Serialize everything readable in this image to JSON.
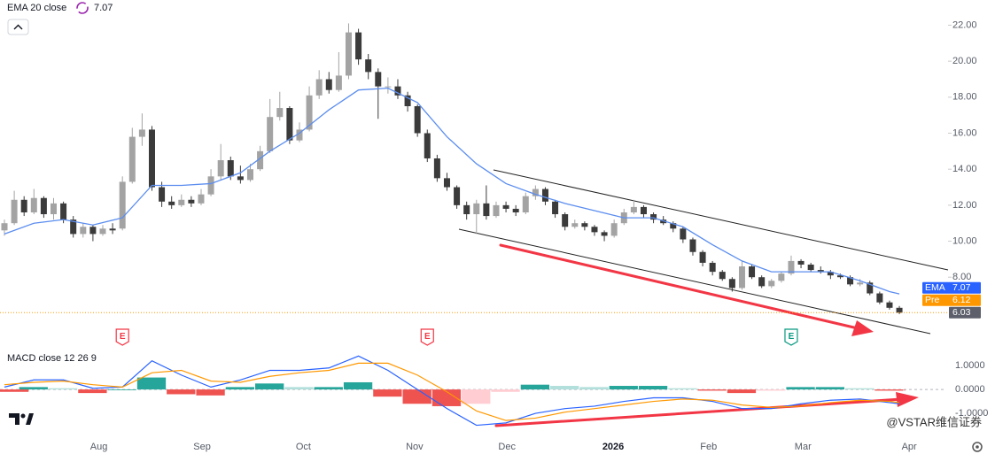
{
  "chart_data": [
    {
      "type": "candlestick",
      "indicator_label": "EMA 20 close",
      "up_color": "#a3a3a3",
      "down_color": "#3b3b3b",
      "xlim": [
        -0.45,
        95.95
      ],
      "xticks": [
        {
          "value": 9.6,
          "label": "Aug"
        },
        {
          "value": 20.1,
          "label": "Sep"
        },
        {
          "value": 30.4,
          "label": "Oct"
        },
        {
          "value": 41.7,
          "label": "Nov"
        },
        {
          "value": 51.1,
          "label": "Dec"
        },
        {
          "value": 61.9,
          "label": "2026"
        },
        {
          "value": 71.6,
          "label": "Feb"
        },
        {
          "value": 81.2,
          "label": "Mar"
        },
        {
          "value": 92,
          "label": "Apr"
        }
      ],
      "ylim": [
        5.7,
        23.4
      ],
      "yticks": [
        {
          "value": 8,
          "label": "8.00"
        },
        {
          "value": 10,
          "label": "10.00"
        },
        {
          "value": 12,
          "label": "12.00"
        },
        {
          "value": 14,
          "label": "14.00"
        },
        {
          "value": 16,
          "label": "16.00"
        },
        {
          "value": 18,
          "label": "18.00"
        },
        {
          "value": 20,
          "label": "20.00"
        },
        {
          "value": 22,
          "label": "22.00"
        }
      ],
      "candles": [
        [
          10.6,
          11.2,
          10.3,
          11.0
        ],
        [
          11.0,
          12.8,
          10.9,
          12.3
        ],
        [
          12.3,
          12.5,
          11.4,
          11.6
        ],
        [
          11.6,
          12.9,
          11.5,
          12.4
        ],
        [
          12.4,
          12.5,
          11.3,
          11.5
        ],
        [
          11.5,
          12.4,
          11.2,
          12.1
        ],
        [
          12.1,
          12.2,
          11.0,
          11.2
        ],
        [
          11.2,
          11.4,
          10.2,
          10.4
        ],
        [
          10.4,
          11.0,
          10.2,
          10.8
        ],
        [
          10.8,
          10.9,
          10.0,
          10.4
        ],
        [
          10.4,
          10.9,
          10.3,
          10.7
        ],
        [
          10.7,
          11.0,
          10.4,
          10.6
        ],
        [
          10.7,
          13.6,
          10.6,
          13.3
        ],
        [
          13.3,
          16.3,
          13.2,
          15.8
        ],
        [
          15.8,
          17.1,
          15.3,
          16.2
        ],
        [
          16.2,
          16.4,
          12.8,
          13.0
        ],
        [
          13.0,
          13.3,
          11.9,
          12.2
        ],
        [
          12.2,
          12.5,
          11.8,
          12.0
        ],
        [
          12.0,
          12.6,
          11.9,
          12.3
        ],
        [
          12.3,
          12.5,
          11.9,
          12.1
        ],
        [
          12.1,
          12.9,
          12.0,
          12.6
        ],
        [
          12.6,
          14.0,
          12.5,
          13.6
        ],
        [
          13.6,
          15.4,
          13.4,
          14.5
        ],
        [
          14.5,
          14.7,
          13.4,
          13.6
        ],
        [
          13.6,
          14.2,
          13.2,
          13.4
        ],
        [
          13.4,
          14.3,
          13.3,
          14.0
        ],
        [
          14.0,
          15.3,
          13.9,
          15.0
        ],
        [
          15.0,
          17.9,
          14.9,
          16.9
        ],
        [
          16.9,
          18.3,
          16.7,
          17.4
        ],
        [
          17.4,
          17.5,
          15.4,
          15.6
        ],
        [
          15.6,
          16.6,
          15.5,
          16.2
        ],
        [
          16.2,
          18.6,
          16.1,
          18.1
        ],
        [
          18.1,
          19.5,
          17.9,
          19.0
        ],
        [
          19.0,
          19.4,
          18.2,
          18.4
        ],
        [
          18.4,
          20.5,
          18.3,
          19.2
        ],
        [
          19.2,
          22.1,
          19.0,
          21.6
        ],
        [
          21.6,
          21.8,
          19.8,
          20.1
        ],
        [
          20.1,
          20.4,
          19.0,
          19.4
        ],
        [
          19.4,
          19.6,
          16.8,
          18.6
        ],
        [
          18.6,
          19.1,
          18.2,
          18.6
        ],
        [
          18.6,
          19.0,
          17.9,
          18.1
        ],
        [
          18.1,
          18.3,
          17.2,
          17.5
        ],
        [
          17.5,
          17.6,
          15.8,
          16.0
        ],
        [
          16.0,
          16.2,
          14.4,
          14.6
        ],
        [
          14.6,
          14.8,
          13.3,
          13.5
        ],
        [
          13.5,
          13.8,
          12.8,
          13.0
        ],
        [
          13.0,
          13.1,
          11.8,
          12.0
        ],
        [
          12.0,
          12.2,
          11.2,
          11.5
        ],
        [
          11.5,
          12.3,
          10.4,
          12.1
        ],
        [
          12.1,
          13.1,
          11.2,
          11.4
        ],
        [
          11.4,
          12.2,
          11.3,
          12.0
        ],
        [
          12.0,
          12.2,
          11.6,
          11.8
        ],
        [
          11.8,
          12.0,
          11.4,
          11.6
        ],
        [
          11.6,
          12.7,
          11.5,
          12.5
        ],
        [
          12.5,
          13.1,
          12.3,
          12.9
        ],
        [
          12.9,
          13.0,
          12.0,
          12.2
        ],
        [
          12.2,
          12.3,
          11.3,
          11.5
        ],
        [
          11.5,
          11.6,
          10.6,
          10.8
        ],
        [
          10.8,
          11.2,
          10.7,
          11.0
        ],
        [
          11.0,
          11.1,
          10.6,
          10.8
        ],
        [
          10.8,
          10.9,
          10.3,
          10.5
        ],
        [
          10.5,
          10.6,
          10.0,
          10.3
        ],
        [
          10.3,
          11.2,
          10.2,
          11.0
        ],
        [
          11.0,
          11.8,
          10.9,
          11.6
        ],
        [
          11.6,
          12.3,
          11.5,
          11.9
        ],
        [
          11.9,
          12.0,
          11.3,
          11.5
        ],
        [
          11.5,
          11.6,
          11.0,
          11.2
        ],
        [
          11.2,
          11.4,
          10.9,
          11.0
        ],
        [
          11.0,
          11.1,
          10.5,
          10.7
        ],
        [
          10.7,
          10.8,
          9.9,
          10.1
        ],
        [
          10.1,
          10.2,
          9.2,
          9.4
        ],
        [
          9.4,
          9.5,
          8.6,
          8.8
        ],
        [
          8.8,
          8.9,
          8.1,
          8.3
        ],
        [
          8.3,
          8.4,
          7.8,
          7.9
        ],
        [
          7.9,
          8.0,
          7.2,
          7.4
        ],
        [
          7.4,
          8.9,
          7.3,
          8.6
        ],
        [
          8.6,
          8.7,
          7.9,
          8.0
        ],
        [
          8.0,
          8.1,
          7.4,
          7.5
        ],
        [
          7.5,
          7.9,
          7.4,
          7.8
        ],
        [
          7.8,
          8.3,
          7.7,
          8.2
        ],
        [
          8.2,
          9.2,
          8.1,
          8.9
        ],
        [
          8.9,
          9.0,
          8.5,
          8.7
        ],
        [
          8.7,
          8.8,
          8.3,
          8.4
        ],
        [
          8.4,
          8.6,
          8.2,
          8.3
        ],
        [
          8.3,
          8.4,
          7.9,
          8.1
        ],
        [
          8.1,
          8.2,
          7.9,
          8.0
        ],
        [
          8.0,
          8.1,
          7.5,
          7.6
        ],
        [
          7.6,
          7.9,
          7.5,
          7.7
        ],
        [
          7.7,
          7.8,
          7.0,
          7.1
        ],
        [
          7.1,
          7.2,
          6.5,
          6.6
        ],
        [
          6.6,
          6.7,
          6.2,
          6.3
        ],
        [
          6.3,
          6.4,
          5.95,
          6.03
        ]
      ],
      "ema": {
        "name": "EMA",
        "color": "#5b8def",
        "label_color": "#2962ff",
        "x": [
          0,
          3,
          6,
          9,
          12,
          15,
          18,
          21,
          24,
          27,
          30,
          33,
          36,
          39,
          42,
          45,
          48,
          51,
          54,
          57,
          60,
          63,
          66,
          69,
          72,
          75,
          78,
          81,
          84,
          87,
          90,
          91
        ],
        "values": [
          10.4,
          11.0,
          11.2,
          10.9,
          11.3,
          13.1,
          13.1,
          13.2,
          13.8,
          15.0,
          16.0,
          17.3,
          18.4,
          18.5,
          17.7,
          15.8,
          14.3,
          13.2,
          12.6,
          12.1,
          11.7,
          11.3,
          11.3,
          10.8,
          9.8,
          8.9,
          8.3,
          8.3,
          8.3,
          7.8,
          7.2,
          7.07
        ]
      },
      "premarket": {
        "label": "Pre",
        "value": 6.12,
        "color": "#ff9800"
      },
      "last_price_color": "#5d606b",
      "events": [
        {
          "x": 12,
          "label": "E",
          "color": "#f23645"
        },
        {
          "x": 43,
          "label": "E",
          "color": "#f23645"
        },
        {
          "x": 80,
          "label": "E",
          "color": "#089981"
        }
      ],
      "watermark": "@VSTAR维信证券"
    },
    {
      "type": "macd",
      "title": "MACD close 12 26 9",
      "ylim": [
        -1.85,
        1.67
      ],
      "yticks": [
        {
          "value": 1,
          "label": "1.0000"
        },
        {
          "value": 0,
          "label": "0.0000"
        },
        {
          "value": -1,
          "label": "-1.0000"
        }
      ],
      "x": [
        0,
        3,
        6,
        9,
        12,
        15,
        18,
        21,
        24,
        27,
        30,
        33,
        36,
        39,
        42,
        45,
        48,
        51,
        54,
        57,
        60,
        63,
        66,
        69,
        72,
        75,
        78,
        81,
        84,
        87,
        90,
        91
      ],
      "series": [
        {
          "color": "#2962ff",
          "values": [
            0.1,
            0.4,
            0.4,
            0.05,
            0.1,
            1.2,
            0.6,
            0.1,
            0.4,
            0.8,
            0.8,
            0.9,
            1.4,
            0.8,
            0.0,
            -0.8,
            -1.5,
            -1.4,
            -1.0,
            -0.8,
            -0.7,
            -0.5,
            -0.35,
            -0.35,
            -0.5,
            -0.8,
            -0.8,
            -0.6,
            -0.45,
            -0.4,
            -0.55,
            -0.6
          ]
        },
        {
          "color": "#ff9800",
          "values": [
            0.2,
            0.3,
            0.35,
            0.2,
            0.1,
            0.7,
            0.8,
            0.35,
            0.3,
            0.55,
            0.7,
            0.8,
            1.1,
            1.1,
            0.6,
            -0.1,
            -0.9,
            -1.3,
            -1.2,
            -0.95,
            -0.8,
            -0.65,
            -0.5,
            -0.4,
            -0.45,
            -0.65,
            -0.75,
            -0.7,
            -0.55,
            -0.45,
            -0.5,
            -0.55
          ]
        }
      ],
      "histogram": [
        -0.1,
        0.1,
        0.05,
        -0.15,
        0.0,
        0.5,
        -0.2,
        -0.25,
        0.1,
        0.25,
        0.1,
        0.1,
        0.3,
        -0.3,
        -0.6,
        -0.7,
        -0.6,
        -0.1,
        0.2,
        0.15,
        0.1,
        0.15,
        0.15,
        0.05,
        -0.05,
        -0.15,
        -0.05,
        0.1,
        0.1,
        0.05,
        -0.05,
        -0.05
      ],
      "histogram_colors": {
        "up_rising": "#26a69a",
        "up_falling": "#b2dfdb",
        "down_falling": "#ef5350",
        "down_rising": "#ffcdd2"
      }
    }
  ]
}
